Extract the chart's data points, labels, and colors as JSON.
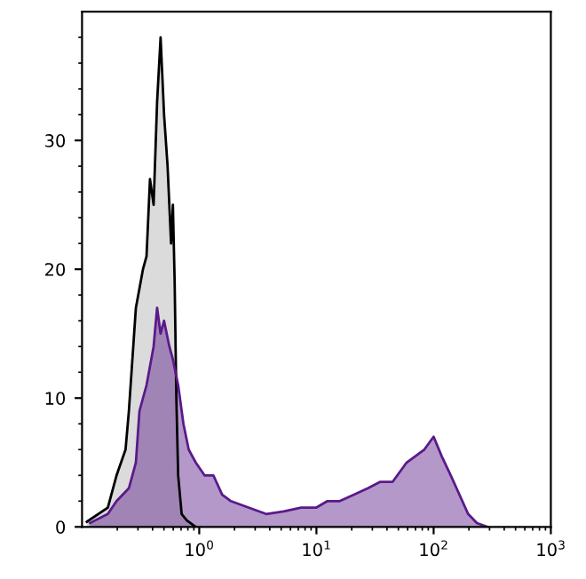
{
  "chart_data": {
    "type": "area",
    "log": "x",
    "xlim": [
      0.1,
      1000
    ],
    "ylim": [
      0,
      40
    ],
    "xticks": [
      {
        "value": 0.2,
        "label": null
      },
      {
        "value": 0.3,
        "label": null
      },
      {
        "value": 0.4,
        "label": null
      },
      {
        "value": 0.5,
        "label": null
      },
      {
        "value": 0.6,
        "label": null
      },
      {
        "value": 0.7,
        "label": null
      },
      {
        "value": 0.8,
        "label": null
      },
      {
        "value": 0.9,
        "label": null
      },
      {
        "value": 1,
        "label": "10$^{0}$"
      },
      {
        "value": 2,
        "label": null
      },
      {
        "value": 3,
        "label": null
      },
      {
        "value": 4,
        "label": null
      },
      {
        "value": 5,
        "label": null
      },
      {
        "value": 6,
        "label": null
      },
      {
        "value": 7,
        "label": null
      },
      {
        "value": 8,
        "label": null
      },
      {
        "value": 9,
        "label": null
      },
      {
        "value": 10,
        "label": "10$^{1}$"
      },
      {
        "value": 20,
        "label": null
      },
      {
        "value": 30,
        "label": null
      },
      {
        "value": 40,
        "label": null
      },
      {
        "value": 50,
        "label": null
      },
      {
        "value": 60,
        "label": null
      },
      {
        "value": 70,
        "label": null
      },
      {
        "value": 80,
        "label": null
      },
      {
        "value": 90,
        "label": null
      },
      {
        "value": 100,
        "label": "10$^{2}$"
      },
      {
        "value": 200,
        "label": null
      },
      {
        "value": 300,
        "label": null
      },
      {
        "value": 400,
        "label": null
      },
      {
        "value": 500,
        "label": null
      },
      {
        "value": 600,
        "label": null
      },
      {
        "value": 700,
        "label": null
      },
      {
        "value": 800,
        "label": null
      },
      {
        "value": 900,
        "label": null
      },
      {
        "value": 1000,
        "label": "10$^{3}$"
      }
    ],
    "yticks": [
      0,
      {
        "value": 2,
        "label": null
      },
      {
        "value": 4,
        "label": null
      },
      {
        "value": 6,
        "label": null
      },
      {
        "value": 8,
        "label": null
      },
      10,
      {
        "value": 12,
        "label": null
      },
      {
        "value": 14,
        "label": null
      },
      {
        "value": 16,
        "label": null
      },
      {
        "value": 18,
        "label": null
      },
      20,
      {
        "value": 22,
        "label": null
      },
      {
        "value": 24,
        "label": null
      },
      {
        "value": 26,
        "label": null
      },
      {
        "value": 28,
        "label": null
      },
      30,
      {
        "value": 32,
        "label": null
      },
      {
        "value": 34,
        "label": null
      },
      {
        "value": 36,
        "label": null
      },
      {
        "value": 38,
        "label": null
      }
    ],
    "grid": false,
    "legend": false,
    "series": [
      {
        "color": "#000000",
        "x": [
          0.11,
          0.166,
          0.197,
          0.235,
          0.251,
          0.288,
          0.331,
          0.355,
          0.38,
          0.408,
          0.437,
          0.468,
          0.501,
          0.537,
          0.575,
          0.596,
          0.617,
          0.638,
          0.661,
          0.708,
          0.785,
          0.933
        ],
        "values": [
          0.4,
          1.5,
          4,
          6,
          9,
          17,
          20,
          21,
          27,
          25,
          33,
          38,
          32,
          28,
          22,
          25,
          19,
          10,
          4,
          1,
          0.5,
          0
        ]
      },
      {
        "color": "#5a1a8a",
        "x": [
          0.117,
          0.166,
          0.197,
          0.251,
          0.288,
          0.309,
          0.355,
          0.408,
          0.437,
          0.468,
          0.501,
          0.556,
          0.596,
          0.661,
          0.733,
          0.813,
          0.933,
          1.11,
          1.32,
          1.57,
          1.86,
          2.63,
          3.72,
          5.25,
          7.41,
          10,
          12.4,
          15.8,
          20.9,
          27.5,
          35.1,
          44.7,
          58.9,
          70,
          83.2,
          100,
          117,
          140,
          166,
          197,
          234,
          288
        ],
        "values": [
          0.3,
          1,
          2,
          3,
          5,
          9,
          11,
          14,
          17,
          15,
          16,
          14,
          13,
          11,
          8,
          6,
          5,
          4,
          4,
          2.5,
          2,
          1.5,
          1,
          1.2,
          1.5,
          1.5,
          2,
          2,
          2.5,
          3,
          3.5,
          3.5,
          5,
          5.5,
          6,
          7,
          5.5,
          4,
          2.5,
          1,
          0.3,
          0
        ]
      }
    ]
  }
}
